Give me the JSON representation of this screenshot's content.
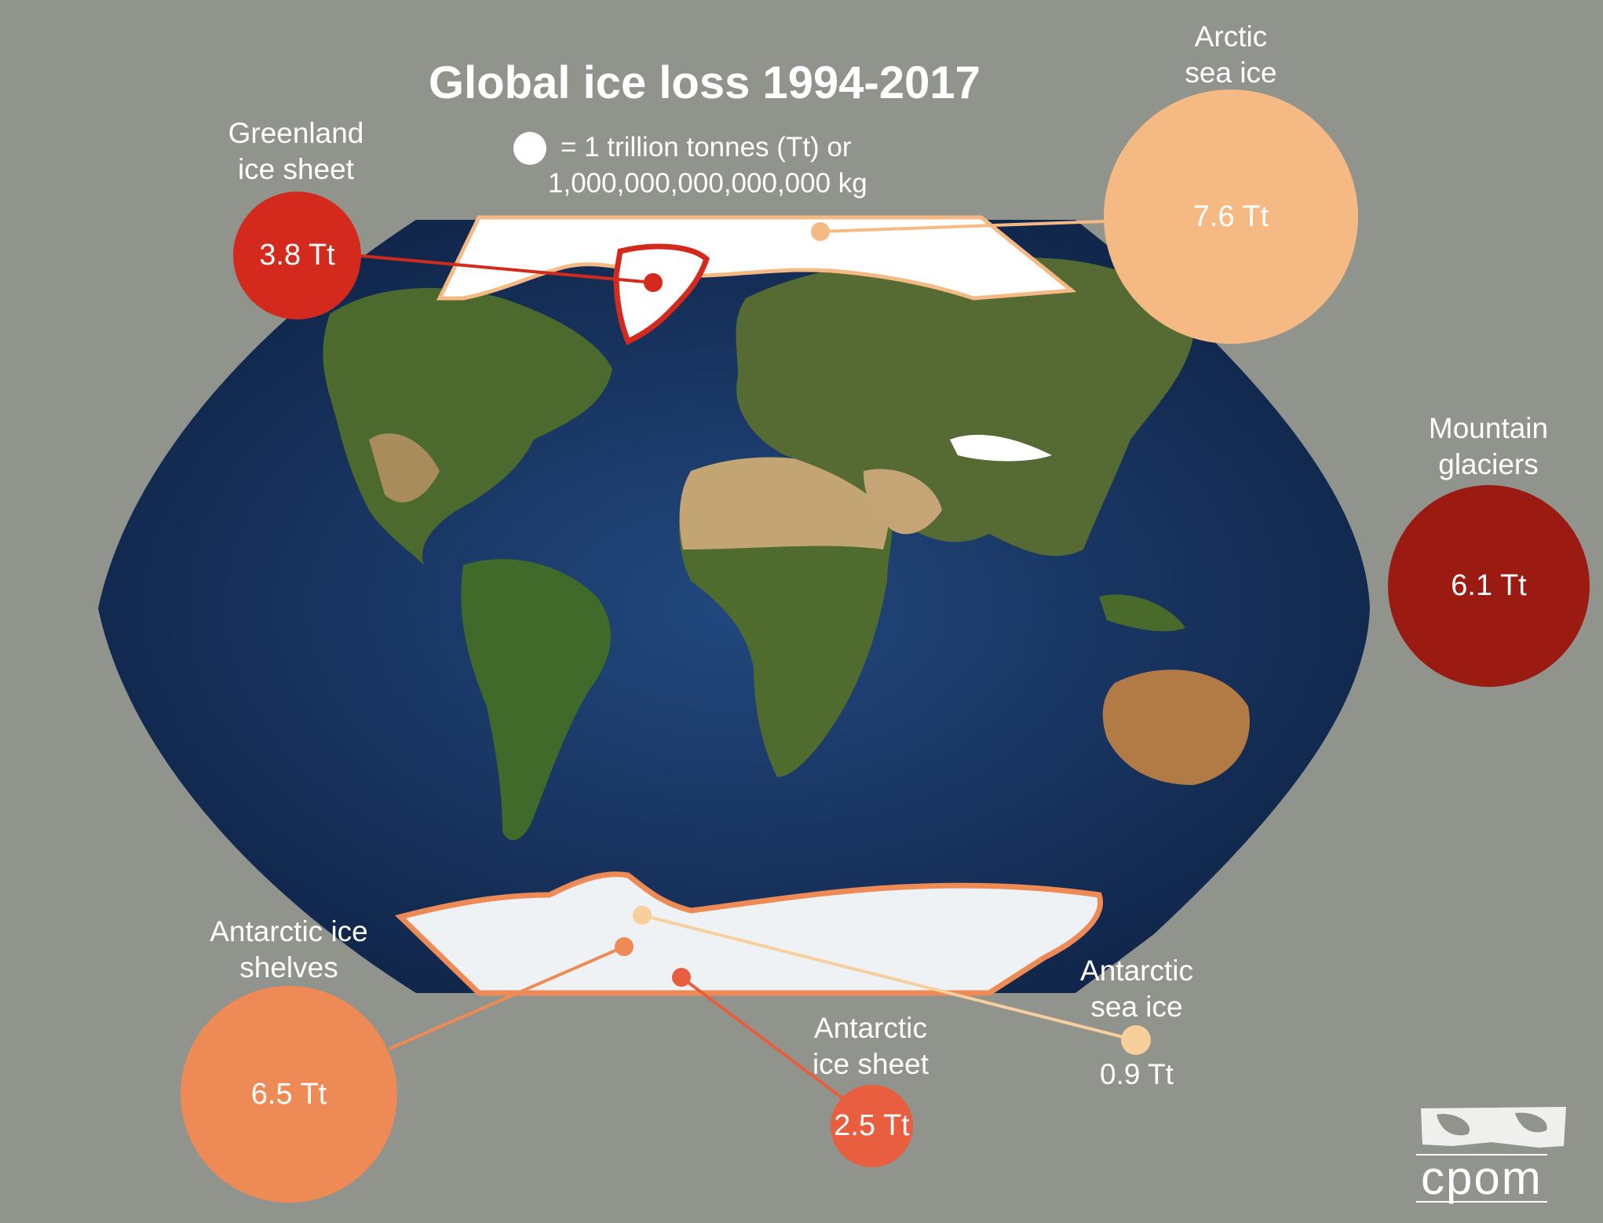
{
  "title": "Global ice loss 1994-2017",
  "legend": {
    "line1": "= 1 trillion tonnes (Tt) or",
    "line2": "1,000,000,000,000,000 kg"
  },
  "items": {
    "greenland": {
      "label_line1": "Greenland",
      "label_line2": "ice sheet",
      "value": "3.8 Tt",
      "tt": 3.8,
      "color": "#d42a1e"
    },
    "arctic_sea": {
      "label_line1": "Arctic",
      "label_line2": "sea ice",
      "value": "7.6 Tt",
      "tt": 7.6,
      "color": "#f5ba84"
    },
    "mountain": {
      "label_line1": "Mountain",
      "label_line2": "glaciers",
      "value": "6.1 Tt",
      "tt": 6.1,
      "color": "#9b1a12"
    },
    "ant_shelves": {
      "label_line1": "Antarctic ice",
      "label_line2": "shelves",
      "value": "6.5 Tt",
      "tt": 6.5,
      "color": "#ee8a55"
    },
    "ant_sheet": {
      "label_line1": "Antarctic",
      "label_line2": "ice sheet",
      "value": "2.5 Tt",
      "tt": 2.5,
      "color": "#e85e3e"
    },
    "ant_sea": {
      "label_line1": "Antarctic",
      "label_line2": "sea ice",
      "value": "0.9 Tt",
      "tt": 0.9,
      "color": "#f7cf9c"
    }
  },
  "logo": {
    "text": "cpom"
  },
  "colors": {
    "background": "#91938d",
    "ocean": "#1d3c6e",
    "land": "#4d6a2e",
    "desert": "#b99a6a",
    "ice": "#ffffff"
  }
}
